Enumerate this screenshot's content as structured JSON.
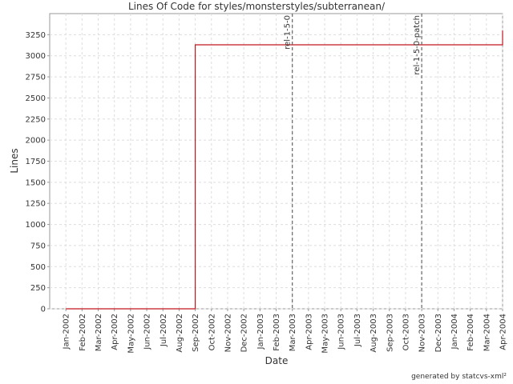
{
  "chart_data": {
    "type": "line",
    "title": "Lines Of Code for styles/monsterstyles/subterranean/",
    "x_label": "Date",
    "y_label": "Lines",
    "footer": "generated by statcvs-xml²",
    "x": [
      "Jan-2002",
      "Sep-2002",
      "Sep-2002",
      "Apr-2004",
      "Apr-2004"
    ],
    "series": [
      {
        "name": "Lines",
        "color": "#c0181e",
        "values": [
          0,
          0,
          3130,
          3130,
          3300
        ]
      }
    ],
    "xlim": [
      "Dec-2001",
      "Apr-2004"
    ],
    "xticks": [
      "Jan-2002",
      "Feb-2002",
      "Mar-2002",
      "Apr-2002",
      "May-2002",
      "Jun-2002",
      "Jul-2002",
      "Aug-2002",
      "Sep-2002",
      "Oct-2002",
      "Nov-2002",
      "Dec-2002",
      "Jan-2003",
      "Feb-2003",
      "Mar-2003",
      "Apr-2003",
      "May-2003",
      "Jun-2003",
      "Jul-2003",
      "Aug-2003",
      "Sep-2003",
      "Oct-2003",
      "Nov-2003",
      "Dec-2003",
      "Jan-2004",
      "Feb-2004",
      "Mar-2004",
      "Apr-2004"
    ],
    "ylim": [
      0,
      3500
    ],
    "yticks": [
      0,
      250,
      500,
      750,
      1000,
      1250,
      1500,
      1750,
      2000,
      2250,
      2500,
      2750,
      3000,
      3250
    ],
    "grid": true,
    "markers": [
      {
        "label": "rel-1-5-0",
        "x": "Mar-2003"
      },
      {
        "label": "rel-1-5-0-patch",
        "x": "Nov-2003"
      }
    ]
  }
}
